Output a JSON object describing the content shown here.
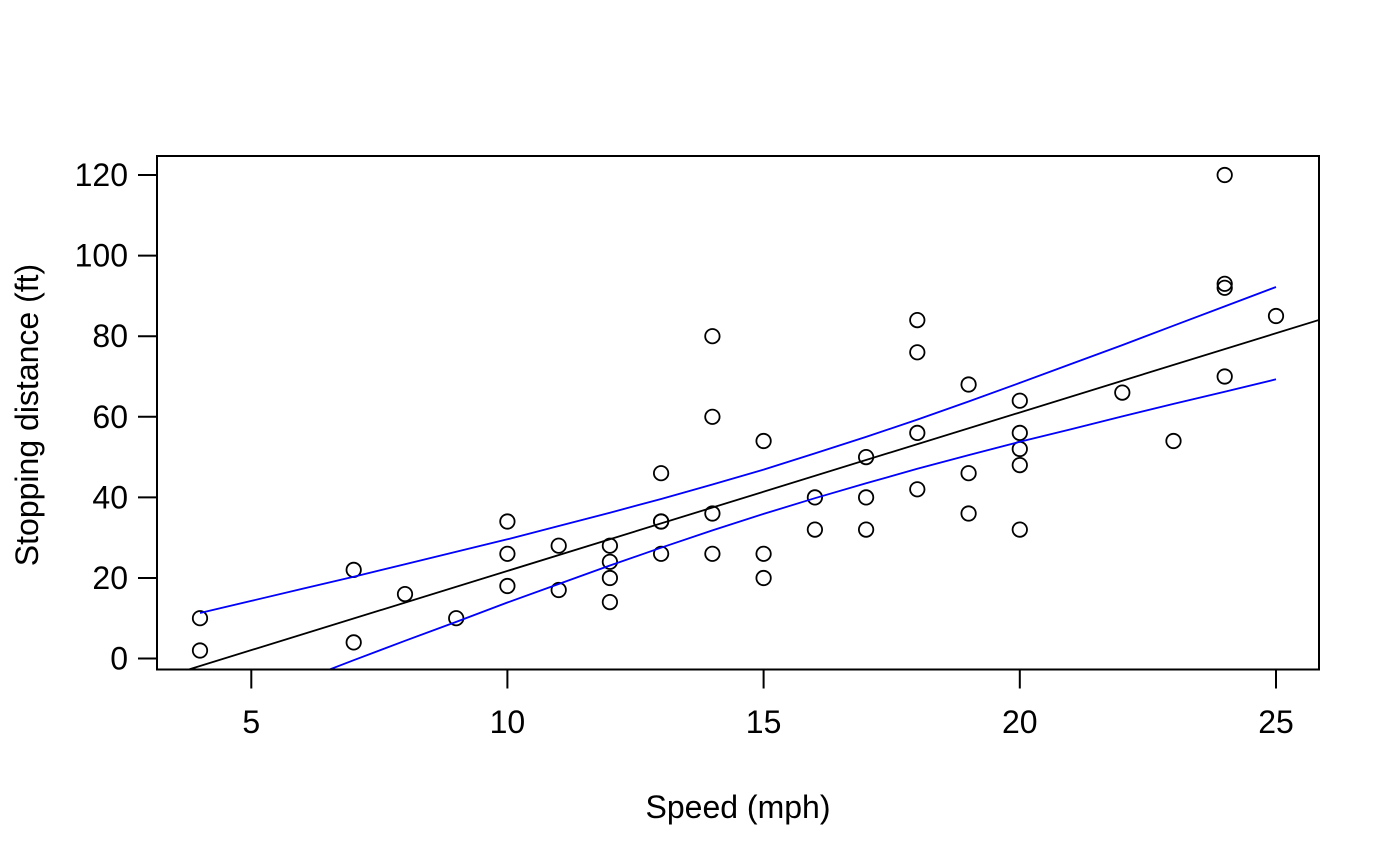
{
  "figure": {
    "background": "#ffffff",
    "title": ""
  },
  "chart_data": {
    "type": "scatter",
    "title": "",
    "xlabel": "Speed (mph)",
    "ylabel": "Stopping distance (ft)",
    "x_ticks": [
      5,
      10,
      15,
      20,
      25
    ],
    "y_ticks": [
      0,
      20,
      40,
      60,
      80,
      100,
      120
    ],
    "xlim": [
      3.16,
      25.84
    ],
    "ylim": [
      -2.72,
      124.72
    ],
    "grid": "off",
    "legend": "none",
    "colors": {
      "points": "#000000",
      "regression_line": "#000000",
      "confidence_band": "#0000ff",
      "axis": "#000000",
      "background": "#ffffff"
    },
    "point_style": "open-circle",
    "points": [
      [
        4,
        2
      ],
      [
        4,
        10
      ],
      [
        7,
        4
      ],
      [
        7,
        22
      ],
      [
        8,
        16
      ],
      [
        9,
        10
      ],
      [
        10,
        18
      ],
      [
        10,
        26
      ],
      [
        10,
        34
      ],
      [
        11,
        17
      ],
      [
        11,
        28
      ],
      [
        12,
        14
      ],
      [
        12,
        20
      ],
      [
        12,
        24
      ],
      [
        12,
        28
      ],
      [
        13,
        26
      ],
      [
        13,
        34
      ],
      [
        13,
        34
      ],
      [
        13,
        46
      ],
      [
        14,
        26
      ],
      [
        14,
        36
      ],
      [
        14,
        60
      ],
      [
        14,
        80
      ],
      [
        15,
        20
      ],
      [
        15,
        26
      ],
      [
        15,
        54
      ],
      [
        16,
        32
      ],
      [
        16,
        40
      ],
      [
        17,
        32
      ],
      [
        17,
        40
      ],
      [
        17,
        50
      ],
      [
        18,
        42
      ],
      [
        18,
        56
      ],
      [
        18,
        76
      ],
      [
        18,
        84
      ],
      [
        19,
        36
      ],
      [
        19,
        46
      ],
      [
        19,
        68
      ],
      [
        20,
        32
      ],
      [
        20,
        48
      ],
      [
        20,
        52
      ],
      [
        20,
        56
      ],
      [
        20,
        64
      ],
      [
        22,
        66
      ],
      [
        23,
        54
      ],
      [
        24,
        70
      ],
      [
        24,
        92
      ],
      [
        24,
        93
      ],
      [
        24,
        120
      ],
      [
        25,
        85
      ]
    ],
    "regression_line": {
      "slope": 3.9324,
      "intercept": -17.5791,
      "extent": "full x range, clipped to plot box"
    },
    "confidence_band": {
      "x": [
        4,
        5,
        6,
        7,
        8,
        9,
        10,
        11,
        12,
        13,
        14,
        15,
        16,
        17,
        18,
        19,
        20,
        21,
        22,
        23,
        24,
        25
      ],
      "upper": [
        11.3,
        14.3,
        17.3,
        20.3,
        23.4,
        26.5,
        29.6,
        32.9,
        36.2,
        39.6,
        43.2,
        46.9,
        50.9,
        55.0,
        59.3,
        63.8,
        68.4,
        73.1,
        77.8,
        82.6,
        87.4,
        92.2
      ],
      "lower": [
        -15.0,
        -10.1,
        -5.3,
        -0.4,
        4.4,
        9.1,
        13.9,
        18.5,
        23.1,
        27.5,
        31.8,
        35.9,
        39.8,
        43.5,
        47.1,
        50.5,
        53.8,
        56.9,
        60.1,
        63.2,
        66.2,
        69.3
      ]
    }
  }
}
